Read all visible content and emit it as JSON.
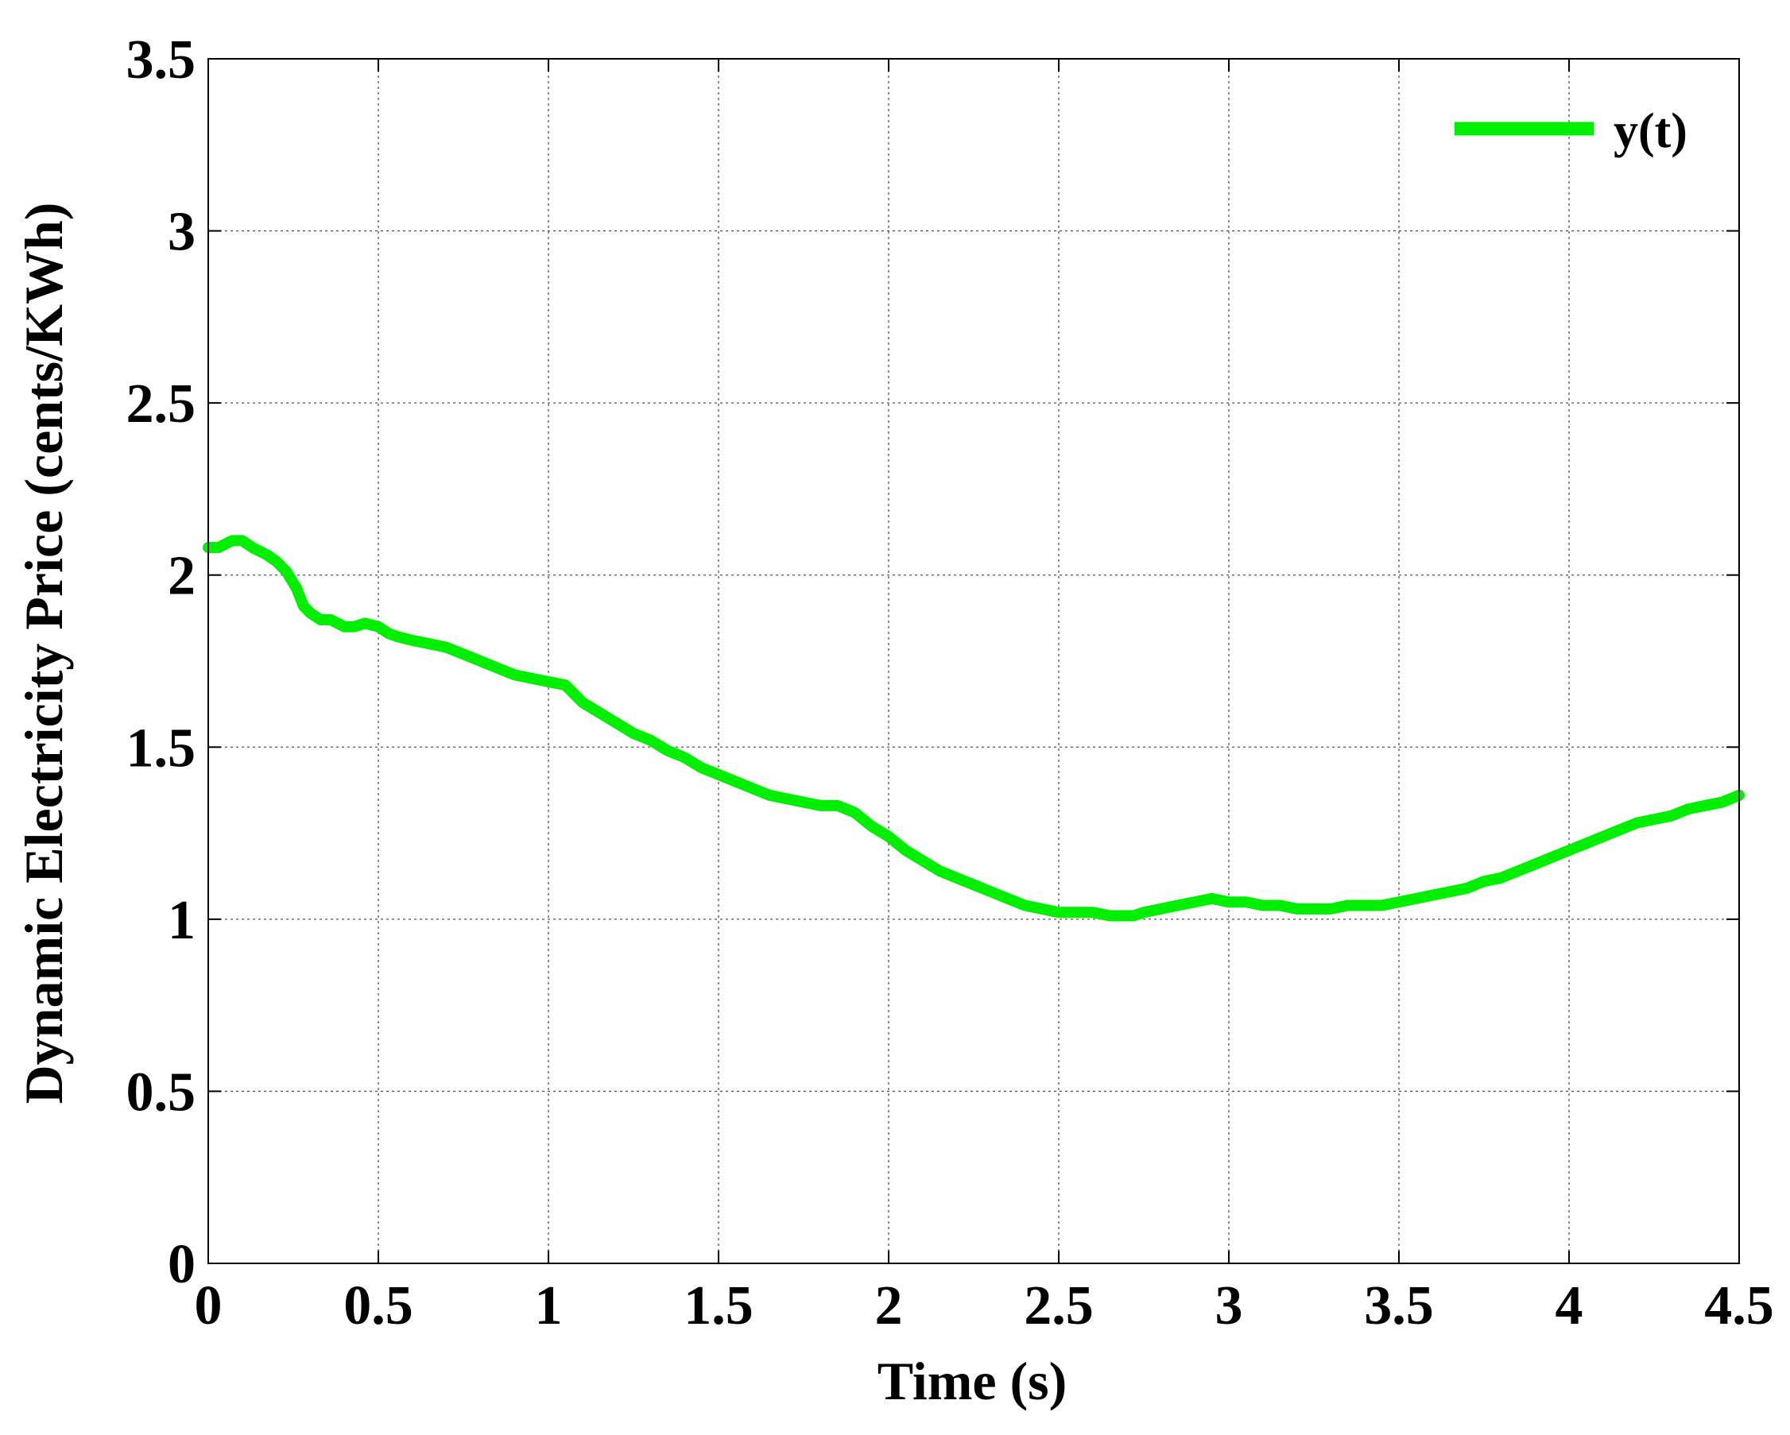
{
  "chart_data": {
    "type": "line",
    "title": "",
    "xlabel": "Time (s)",
    "ylabel": "Dynamic Electricity Price (cents/KWh)",
    "xlim": [
      0,
      4.5
    ],
    "ylim": [
      0,
      3.5
    ],
    "xticks": [
      0,
      0.5,
      1,
      1.5,
      2,
      2.5,
      3,
      3.5,
      4,
      4.5
    ],
    "xtick_labels": [
      "0",
      "0.5",
      "1",
      "1.5",
      "2",
      "2.5",
      "3",
      "3.5",
      "4",
      "4.5"
    ],
    "yticks": [
      0,
      0.5,
      1,
      1.5,
      2,
      2.5,
      3,
      3.5
    ],
    "ytick_labels": [
      "0",
      "0.5",
      "1",
      "1.5",
      "2",
      "2.5",
      "3",
      "3.5"
    ],
    "grid": true,
    "legend_position": "top-right",
    "series": [
      {
        "name": "y(t)",
        "color": "#00ee00",
        "x": [
          0,
          0.03,
          0.07,
          0.1,
          0.13,
          0.17,
          0.2,
          0.23,
          0.26,
          0.28,
          0.3,
          0.33,
          0.36,
          0.4,
          0.43,
          0.46,
          0.5,
          0.53,
          0.56,
          0.6,
          0.65,
          0.7,
          0.75,
          0.8,
          0.85,
          0.9,
          0.95,
          1.0,
          1.05,
          1.08,
          1.1,
          1.15,
          1.2,
          1.25,
          1.3,
          1.35,
          1.4,
          1.45,
          1.5,
          1.55,
          1.6,
          1.65,
          1.7,
          1.75,
          1.8,
          1.85,
          1.9,
          1.95,
          2.0,
          2.05,
          2.1,
          2.15,
          2.2,
          2.25,
          2.3,
          2.35,
          2.4,
          2.45,
          2.5,
          2.55,
          2.6,
          2.65,
          2.7,
          2.72,
          2.75,
          2.8,
          2.85,
          2.9,
          2.95,
          3.0,
          3.05,
          3.1,
          3.15,
          3.2,
          3.25,
          3.3,
          3.35,
          3.4,
          3.45,
          3.5,
          3.55,
          3.6,
          3.65,
          3.7,
          3.75,
          3.8,
          3.85,
          3.9,
          3.95,
          4.0,
          4.05,
          4.1,
          4.15,
          4.2,
          4.25,
          4.3,
          4.35,
          4.4,
          4.45,
          4.5
        ],
        "values": [
          2.08,
          2.08,
          2.1,
          2.1,
          2.08,
          2.06,
          2.04,
          2.01,
          1.96,
          1.91,
          1.89,
          1.87,
          1.87,
          1.85,
          1.85,
          1.86,
          1.85,
          1.83,
          1.82,
          1.81,
          1.8,
          1.79,
          1.77,
          1.75,
          1.73,
          1.71,
          1.7,
          1.69,
          1.68,
          1.65,
          1.63,
          1.6,
          1.57,
          1.54,
          1.52,
          1.49,
          1.47,
          1.44,
          1.42,
          1.4,
          1.38,
          1.36,
          1.35,
          1.34,
          1.33,
          1.33,
          1.31,
          1.27,
          1.24,
          1.2,
          1.17,
          1.14,
          1.12,
          1.1,
          1.08,
          1.06,
          1.04,
          1.03,
          1.02,
          1.02,
          1.02,
          1.01,
          1.01,
          1.01,
          1.02,
          1.03,
          1.04,
          1.05,
          1.06,
          1.05,
          1.05,
          1.04,
          1.04,
          1.03,
          1.03,
          1.03,
          1.04,
          1.04,
          1.04,
          1.05,
          1.06,
          1.07,
          1.08,
          1.09,
          1.11,
          1.12,
          1.14,
          1.16,
          1.18,
          1.2,
          1.22,
          1.24,
          1.26,
          1.28,
          1.29,
          1.3,
          1.32,
          1.33,
          1.34,
          1.36
        ]
      }
    ]
  }
}
